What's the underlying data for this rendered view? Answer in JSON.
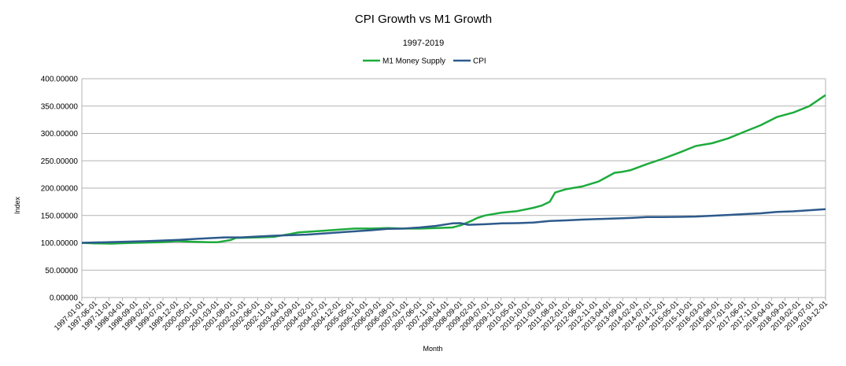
{
  "chart_data": {
    "type": "line",
    "title": "CPI Growth vs M1 Growth",
    "subtitle": "1997-2019",
    "xlabel": "Month",
    "ylabel": "Index",
    "ylim": [
      0,
      400
    ],
    "yticks": [
      "0.00000",
      "50.00000",
      "100.00000",
      "150.00000",
      "200.00000",
      "250.00000",
      "300.00000",
      "350.00000",
      "400.00000"
    ],
    "x_range": {
      "start": "1997-01",
      "end": "2019-12"
    },
    "categories": [
      "1997-01-01",
      "1997-06-01",
      "1997-11-01",
      "1998-04-01",
      "1998-09-01",
      "1999-02-01",
      "1999-07-01",
      "1999-12-01",
      "2000-05-01",
      "2000-10-01",
      "2001-03-01",
      "2001-08-01",
      "2002-01-01",
      "2002-06-01",
      "2002-11-01",
      "2003-04-01",
      "2003-09-01",
      "2004-02-01",
      "2004-07-01",
      "2004-12-01",
      "2005-05-01",
      "2005-10-01",
      "2006-03-01",
      "2006-08-01",
      "2007-01-01",
      "2007-06-01",
      "2007-11-01",
      "2008-04-01",
      "2008-09-01",
      "2009-02-01",
      "2009-07-01",
      "2009-12-01",
      "2010-05-01",
      "2010-10-01",
      "2011-03-01",
      "2011-08-01",
      "2012-01-01",
      "2012-06-01",
      "2012-11-01",
      "2013-04-01",
      "2013-09-01",
      "2014-02-01",
      "2014-07-01",
      "2014-12-01",
      "2015-05-01",
      "2015-10-01",
      "2016-03-01",
      "2016-08-01",
      "2017-01-01",
      "2017-06-01",
      "2017-11-01",
      "2018-04-01",
      "2018-09-01",
      "2019-02-01",
      "2019-07-01",
      "2019-12-01"
    ],
    "grid": true,
    "legend_position": "top-center",
    "series": [
      {
        "name": "M1 Money Supply",
        "color": "#1dab3c",
        "points": [
          [
            "1997-01",
            100
          ],
          [
            "1997-06",
            99
          ],
          [
            "1997-12",
            98.5
          ],
          [
            "1998-06",
            99.5
          ],
          [
            "1998-12",
            100.5
          ],
          [
            "1999-06",
            101
          ],
          [
            "1999-12",
            103
          ],
          [
            "2000-06",
            102
          ],
          [
            "2000-12",
            101
          ],
          [
            "2001-03",
            101
          ],
          [
            "2001-08",
            105
          ],
          [
            "2001-10",
            109
          ],
          [
            "2002-06",
            110
          ],
          [
            "2002-12",
            111
          ],
          [
            "2003-06",
            116
          ],
          [
            "2003-09",
            119
          ],
          [
            "2003-12",
            120
          ],
          [
            "2004-06",
            122
          ],
          [
            "2004-12",
            124
          ],
          [
            "2005-06",
            126
          ],
          [
            "2005-12",
            126
          ],
          [
            "2006-06",
            127
          ],
          [
            "2006-12",
            126
          ],
          [
            "2007-06",
            126
          ],
          [
            "2007-12",
            127
          ],
          [
            "2008-06",
            128
          ],
          [
            "2008-09",
            132
          ],
          [
            "2009-01",
            140
          ],
          [
            "2009-03",
            145
          ],
          [
            "2009-06",
            150
          ],
          [
            "2009-12",
            155
          ],
          [
            "2010-06",
            158
          ],
          [
            "2010-12",
            164
          ],
          [
            "2011-03",
            168
          ],
          [
            "2011-06",
            175
          ],
          [
            "2011-08",
            192
          ],
          [
            "2011-12",
            198
          ],
          [
            "2012-06",
            203
          ],
          [
            "2012-12",
            212
          ],
          [
            "2013-06",
            228
          ],
          [
            "2013-09",
            230
          ],
          [
            "2013-12",
            233
          ],
          [
            "2014-06",
            244
          ],
          [
            "2014-12",
            254
          ],
          [
            "2015-06",
            265
          ],
          [
            "2015-12",
            277
          ],
          [
            "2016-06",
            282
          ],
          [
            "2016-12",
            291
          ],
          [
            "2017-06",
            303
          ],
          [
            "2017-12",
            315
          ],
          [
            "2018-06",
            330
          ],
          [
            "2018-12",
            338
          ],
          [
            "2019-06",
            350
          ],
          [
            "2019-12",
            370
          ]
        ]
      },
      {
        "name": "CPI",
        "color": "#2d5a8c",
        "points": [
          [
            "1997-01",
            100
          ],
          [
            "1998-01",
            101.5
          ],
          [
            "1999-01",
            103
          ],
          [
            "2000-01",
            105.5
          ],
          [
            "2000-12",
            108.5
          ],
          [
            "2001-06",
            110
          ],
          [
            "2001-12",
            110
          ],
          [
            "2002-06",
            111.5
          ],
          [
            "2002-12",
            113
          ],
          [
            "2003-06",
            114
          ],
          [
            "2003-12",
            115
          ],
          [
            "2004-06",
            117
          ],
          [
            "2004-12",
            119
          ],
          [
            "2005-06",
            121
          ],
          [
            "2005-12",
            123
          ],
          [
            "2006-06",
            125.5
          ],
          [
            "2006-12",
            126
          ],
          [
            "2007-06",
            128
          ],
          [
            "2007-12",
            131
          ],
          [
            "2008-06",
            135.5
          ],
          [
            "2008-09",
            136
          ],
          [
            "2008-12",
            133
          ],
          [
            "2009-06",
            134
          ],
          [
            "2009-12",
            135.5
          ],
          [
            "2010-06",
            136
          ],
          [
            "2010-12",
            137
          ],
          [
            "2011-06",
            140
          ],
          [
            "2011-12",
            141
          ],
          [
            "2012-06",
            142.5
          ],
          [
            "2012-12",
            143.5
          ],
          [
            "2013-06",
            144.5
          ],
          [
            "2013-12",
            145.5
          ],
          [
            "2014-06",
            147
          ],
          [
            "2014-12",
            147
          ],
          [
            "2015-06",
            147.5
          ],
          [
            "2015-12",
            148
          ],
          [
            "2016-06",
            149.5
          ],
          [
            "2016-12",
            151
          ],
          [
            "2017-06",
            152.5
          ],
          [
            "2017-12",
            154
          ],
          [
            "2018-06",
            156.5
          ],
          [
            "2018-12",
            157.5
          ],
          [
            "2019-06",
            159.5
          ],
          [
            "2019-12",
            161.5
          ]
        ]
      }
    ]
  }
}
